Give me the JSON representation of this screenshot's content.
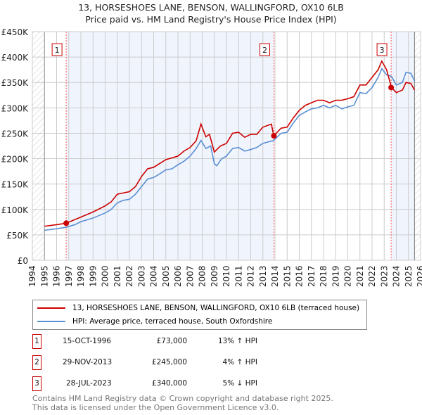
{
  "chart_data": {
    "type": "line",
    "title": "13, HORSESHOES LANE, BENSON, WALLINGFORD, OX10 6LB",
    "subtitle": "Price paid vs. HM Land Registry's House Price Index (HPI)",
    "xlim": [
      1994,
      2026
    ],
    "ylim": [
      0,
      450000
    ],
    "yticks": [
      {
        "v": 0,
        "label": "£0"
      },
      {
        "v": 50000,
        "label": "£50K"
      },
      {
        "v": 100000,
        "label": "£100K"
      },
      {
        "v": 150000,
        "label": "£150K"
      },
      {
        "v": 200000,
        "label": "£200K"
      },
      {
        "v": 250000,
        "label": "£250K"
      },
      {
        "v": 300000,
        "label": "£300K"
      },
      {
        "v": 350000,
        "label": "£350K"
      },
      {
        "v": 400000,
        "label": "£400K"
      },
      {
        "v": 450000,
        "label": "£450K"
      }
    ],
    "xticks": [
      "1994",
      "1995",
      "1996",
      "1997",
      "1998",
      "1999",
      "2000",
      "2001",
      "2002",
      "2003",
      "2004",
      "2005",
      "2006",
      "2007",
      "2008",
      "2009",
      "2010",
      "2011",
      "2012",
      "2013",
      "2014",
      "2015",
      "2016",
      "2017",
      "2018",
      "2019",
      "2020",
      "2021",
      "2022",
      "2023",
      "2024",
      "2025",
      "2026"
    ],
    "grid": true,
    "series": [
      {
        "name": "13, HORSESHOES LANE, BENSON, WALLINGFORD, OX10 6LB (terraced house)",
        "color": "#cc0000",
        "x": [
          1995,
          1996,
          1996.8,
          1998,
          1999,
          2000,
          2000.5,
          2001,
          2002,
          2002.5,
          2003,
          2003.5,
          2004,
          2005,
          2006,
          2006.5,
          2007,
          2007.5,
          2007.9,
          2008.3,
          2008.6,
          2009,
          2009.5,
          2010,
          2010.5,
          2011,
          2011.5,
          2012,
          2012.5,
          2013,
          2013.7,
          2013.9,
          2014.5,
          2015,
          2015.5,
          2016,
          2016.5,
          2017,
          2017.5,
          2018,
          2018.5,
          2019,
          2019.5,
          2020,
          2020.5,
          2021,
          2021.5,
          2022,
          2022.5,
          2022.8,
          2023.2,
          2023.6,
          2024,
          2024.5,
          2024.8,
          2025.2,
          2025.5
        ],
        "y": [
          67000,
          70000,
          73000,
          85000,
          95000,
          107000,
          115000,
          130000,
          135000,
          145000,
          165000,
          180000,
          183000,
          198000,
          205000,
          215000,
          222000,
          235000,
          268000,
          243000,
          248000,
          213000,
          225000,
          230000,
          250000,
          252000,
          242000,
          248000,
          248000,
          262000,
          268000,
          245000,
          260000,
          262000,
          280000,
          295000,
          305000,
          310000,
          315000,
          315000,
          310000,
          315000,
          315000,
          318000,
          322000,
          345000,
          345000,
          360000,
          375000,
          392000,
          375000,
          340000,
          330000,
          335000,
          350000,
          348000,
          335000
        ]
      },
      {
        "name": "HPI: Average price, terraced house, South Oxfordshire",
        "color": "#5b8fd4",
        "x": [
          1995,
          1996,
          1996.8,
          1997.5,
          1998,
          1999,
          2000,
          2000.5,
          2001,
          2001.5,
          2002,
          2002.5,
          2003,
          2003.5,
          2004,
          2004.5,
          2005,
          2005.5,
          2006,
          2006.5,
          2007,
          2007.5,
          2007.9,
          2008.3,
          2008.7,
          2009,
          2009.2,
          2009.6,
          2010,
          2010.5,
          2011,
          2011.5,
          2012,
          2012.5,
          2013,
          2013.9,
          2014.5,
          2015,
          2015.5,
          2016,
          2016.5,
          2017,
          2017.5,
          2018,
          2018.5,
          2019,
          2019.5,
          2020,
          2020.5,
          2021,
          2021.5,
          2022,
          2022.5,
          2022.8,
          2023.2,
          2023.6,
          2024,
          2024.5,
          2024.8,
          2025.2,
          2025.5
        ],
        "y": [
          59000,
          62000,
          65000,
          70000,
          76000,
          83000,
          93000,
          100000,
          113000,
          118000,
          120000,
          130000,
          145000,
          160000,
          163000,
          170000,
          178000,
          180000,
          188000,
          195000,
          205000,
          220000,
          236000,
          220000,
          225000,
          190000,
          186000,
          200000,
          205000,
          220000,
          222000,
          215000,
          218000,
          222000,
          230000,
          236000,
          250000,
          252000,
          270000,
          285000,
          292000,
          298000,
          300000,
          305000,
          300000,
          305000,
          298000,
          302000,
          305000,
          330000,
          328000,
          340000,
          360000,
          377000,
          365000,
          362000,
          345000,
          350000,
          370000,
          368000,
          353000
        ]
      }
    ],
    "sales": [
      {
        "n": "1",
        "x": 1996.79,
        "y": 73000
      },
      {
        "n": "2",
        "x": 2013.91,
        "y": 245000
      },
      {
        "n": "3",
        "x": 2023.57,
        "y": 340000
      }
    ],
    "data_end": 2025.5
  },
  "table": [
    {
      "n": "1",
      "date": "15-OCT-1996",
      "price": "£73,000",
      "hpi": "13% ↑ HPI"
    },
    {
      "n": "2",
      "date": "29-NOV-2013",
      "price": "£245,000",
      "hpi": "4% ↑ HPI"
    },
    {
      "n": "3",
      "date": "28-JUL-2023",
      "price": "£340,000",
      "hpi": "5% ↓ HPI"
    }
  ],
  "footer": [
    "Contains HM Land Registry data © Crown copyright and database right 2025.",
    "This data is licensed under the Open Government Licence v3.0."
  ]
}
